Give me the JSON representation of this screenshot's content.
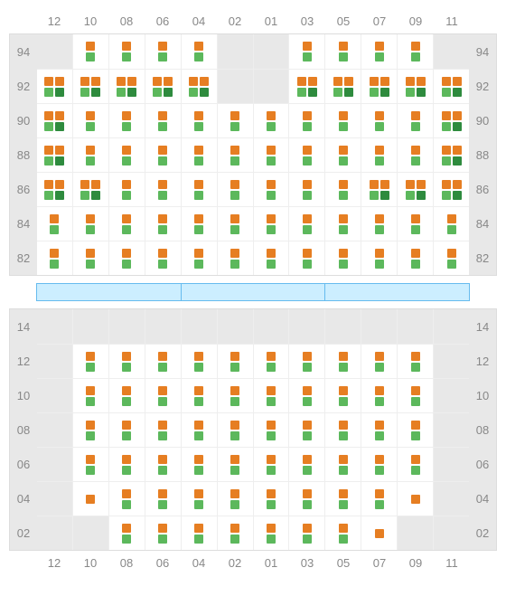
{
  "colors": {
    "orange": "#e67e22",
    "green": "#5cb85c",
    "darkgreen": "#2e8b3e",
    "empty_bg": "#e8e8e8",
    "cell_bg": "#ffffff",
    "grid": "#eeeeee",
    "label": "#888888",
    "divider_fill": "#cceeff",
    "divider_border": "#66bbee"
  },
  "columns": [
    "12",
    "10",
    "08",
    "06",
    "04",
    "02",
    "01",
    "03",
    "05",
    "07",
    "09",
    "11"
  ],
  "divider_segments": 3,
  "sections": [
    {
      "id": "upper",
      "rows": [
        {
          "label": "94",
          "cells": [
            {
              "t": "empty"
            },
            {
              "t": "og"
            },
            {
              "t": "og"
            },
            {
              "t": "og"
            },
            {
              "t": "og"
            },
            {
              "t": "empty"
            },
            {
              "t": "empty"
            },
            {
              "t": "og"
            },
            {
              "t": "og"
            },
            {
              "t": "og"
            },
            {
              "t": "og"
            },
            {
              "t": "empty"
            }
          ]
        },
        {
          "label": "92",
          "cells": [
            {
              "t": "oo_gg"
            },
            {
              "t": "oo_gg"
            },
            {
              "t": "oo_gg"
            },
            {
              "t": "oo_gg"
            },
            {
              "t": "oo_gg"
            },
            {
              "t": "empty"
            },
            {
              "t": "empty"
            },
            {
              "t": "oo_gg"
            },
            {
              "t": "oo_gg"
            },
            {
              "t": "oo_gg"
            },
            {
              "t": "oo_gg"
            },
            {
              "t": "oo_gg"
            }
          ]
        },
        {
          "label": "90",
          "cells": [
            {
              "t": "oo_gg"
            },
            {
              "t": "og"
            },
            {
              "t": "og"
            },
            {
              "t": "og"
            },
            {
              "t": "og"
            },
            {
              "t": "og"
            },
            {
              "t": "og"
            },
            {
              "t": "og"
            },
            {
              "t": "og"
            },
            {
              "t": "og"
            },
            {
              "t": "og"
            },
            {
              "t": "oo_gg"
            }
          ]
        },
        {
          "label": "88",
          "cells": [
            {
              "t": "oo_gg"
            },
            {
              "t": "og"
            },
            {
              "t": "og"
            },
            {
              "t": "og"
            },
            {
              "t": "og"
            },
            {
              "t": "og"
            },
            {
              "t": "og"
            },
            {
              "t": "og"
            },
            {
              "t": "og"
            },
            {
              "t": "og"
            },
            {
              "t": "og"
            },
            {
              "t": "oo_gg"
            }
          ]
        },
        {
          "label": "86",
          "cells": [
            {
              "t": "oo_gg"
            },
            {
              "t": "oo_gg"
            },
            {
              "t": "og"
            },
            {
              "t": "og"
            },
            {
              "t": "og"
            },
            {
              "t": "og"
            },
            {
              "t": "og"
            },
            {
              "t": "og"
            },
            {
              "t": "og"
            },
            {
              "t": "oo_gg"
            },
            {
              "t": "oo_gg"
            },
            {
              "t": "oo_gg"
            }
          ]
        },
        {
          "label": "84",
          "cells": [
            {
              "t": "og"
            },
            {
              "t": "og"
            },
            {
              "t": "og"
            },
            {
              "t": "og"
            },
            {
              "t": "og"
            },
            {
              "t": "og"
            },
            {
              "t": "og"
            },
            {
              "t": "og"
            },
            {
              "t": "og"
            },
            {
              "t": "og"
            },
            {
              "t": "og"
            },
            {
              "t": "og"
            }
          ]
        },
        {
          "label": "82",
          "cells": [
            {
              "t": "og"
            },
            {
              "t": "og"
            },
            {
              "t": "og"
            },
            {
              "t": "og"
            },
            {
              "t": "og"
            },
            {
              "t": "og"
            },
            {
              "t": "og"
            },
            {
              "t": "og"
            },
            {
              "t": "og"
            },
            {
              "t": "og"
            },
            {
              "t": "og"
            },
            {
              "t": "og"
            }
          ]
        }
      ]
    },
    {
      "id": "lower",
      "rows": [
        {
          "label": "14",
          "cells": [
            {
              "t": "empty"
            },
            {
              "t": "empty"
            },
            {
              "t": "empty"
            },
            {
              "t": "empty"
            },
            {
              "t": "empty"
            },
            {
              "t": "empty"
            },
            {
              "t": "empty"
            },
            {
              "t": "empty"
            },
            {
              "t": "empty"
            },
            {
              "t": "empty"
            },
            {
              "t": "empty"
            },
            {
              "t": "empty"
            }
          ]
        },
        {
          "label": "12",
          "cells": [
            {
              "t": "empty"
            },
            {
              "t": "og"
            },
            {
              "t": "og"
            },
            {
              "t": "og"
            },
            {
              "t": "og"
            },
            {
              "t": "og"
            },
            {
              "t": "og"
            },
            {
              "t": "og"
            },
            {
              "t": "og"
            },
            {
              "t": "og"
            },
            {
              "t": "og"
            },
            {
              "t": "empty"
            }
          ]
        },
        {
          "label": "10",
          "cells": [
            {
              "t": "empty"
            },
            {
              "t": "og"
            },
            {
              "t": "og"
            },
            {
              "t": "og"
            },
            {
              "t": "og"
            },
            {
              "t": "og"
            },
            {
              "t": "og"
            },
            {
              "t": "og"
            },
            {
              "t": "og"
            },
            {
              "t": "og"
            },
            {
              "t": "og"
            },
            {
              "t": "empty"
            }
          ]
        },
        {
          "label": "08",
          "cells": [
            {
              "t": "empty"
            },
            {
              "t": "og"
            },
            {
              "t": "og"
            },
            {
              "t": "og"
            },
            {
              "t": "og"
            },
            {
              "t": "og"
            },
            {
              "t": "og"
            },
            {
              "t": "og"
            },
            {
              "t": "og"
            },
            {
              "t": "og"
            },
            {
              "t": "og"
            },
            {
              "t": "empty"
            }
          ]
        },
        {
          "label": "06",
          "cells": [
            {
              "t": "empty"
            },
            {
              "t": "og"
            },
            {
              "t": "og"
            },
            {
              "t": "og"
            },
            {
              "t": "og"
            },
            {
              "t": "og"
            },
            {
              "t": "og"
            },
            {
              "t": "og"
            },
            {
              "t": "og"
            },
            {
              "t": "og"
            },
            {
              "t": "og"
            },
            {
              "t": "empty"
            }
          ]
        },
        {
          "label": "04",
          "cells": [
            {
              "t": "empty"
            },
            {
              "t": "o"
            },
            {
              "t": "og"
            },
            {
              "t": "og"
            },
            {
              "t": "og"
            },
            {
              "t": "og"
            },
            {
              "t": "og"
            },
            {
              "t": "og"
            },
            {
              "t": "og"
            },
            {
              "t": "og"
            },
            {
              "t": "o"
            },
            {
              "t": "empty"
            }
          ]
        },
        {
          "label": "02",
          "cells": [
            {
              "t": "empty"
            },
            {
              "t": "empty"
            },
            {
              "t": "og"
            },
            {
              "t": "og"
            },
            {
              "t": "og"
            },
            {
              "t": "og"
            },
            {
              "t": "og"
            },
            {
              "t": "og"
            },
            {
              "t": "og"
            },
            {
              "t": "o"
            },
            {
              "t": "empty"
            },
            {
              "t": "empty"
            }
          ]
        }
      ]
    }
  ]
}
